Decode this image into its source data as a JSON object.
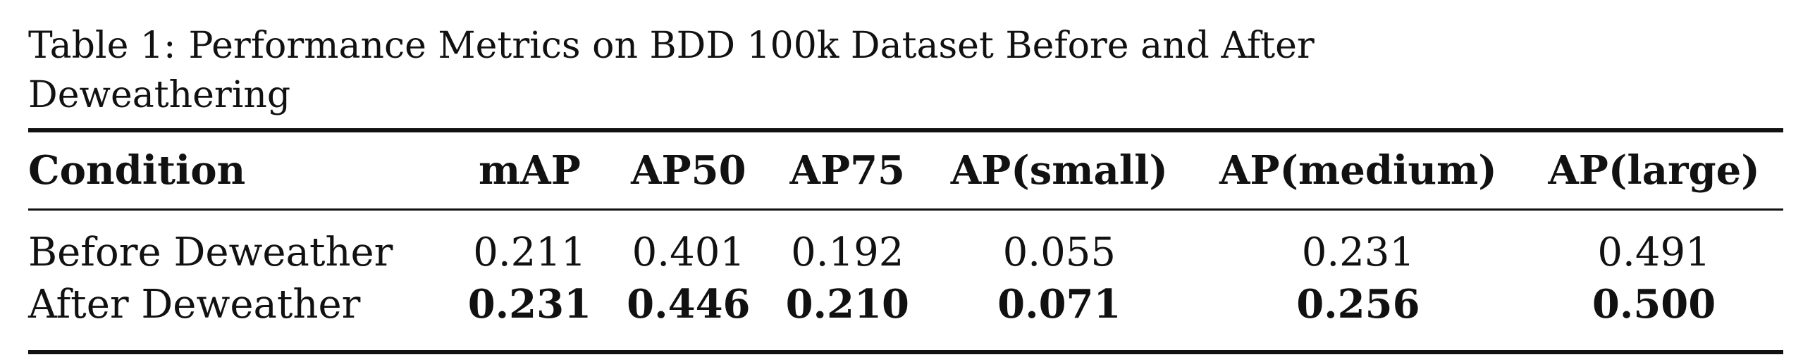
{
  "caption": {
    "label": "Table 1:",
    "text": "Performance Metrics on BDD 100k Dataset Before and After Deweathering"
  },
  "table": {
    "headers": [
      "Condition",
      "mAP",
      "AP50",
      "AP75",
      "AP(small)",
      "AP(medium)",
      "AP(large)"
    ],
    "rows": [
      {
        "condition": "Before Deweather",
        "values": [
          "0.211",
          "0.401",
          "0.192",
          "0.055",
          "0.231",
          "0.491"
        ],
        "bold": false
      },
      {
        "condition": "After Deweather",
        "values": [
          "0.231",
          "0.446",
          "0.210",
          "0.071",
          "0.256",
          "0.500"
        ],
        "bold": true
      }
    ]
  }
}
